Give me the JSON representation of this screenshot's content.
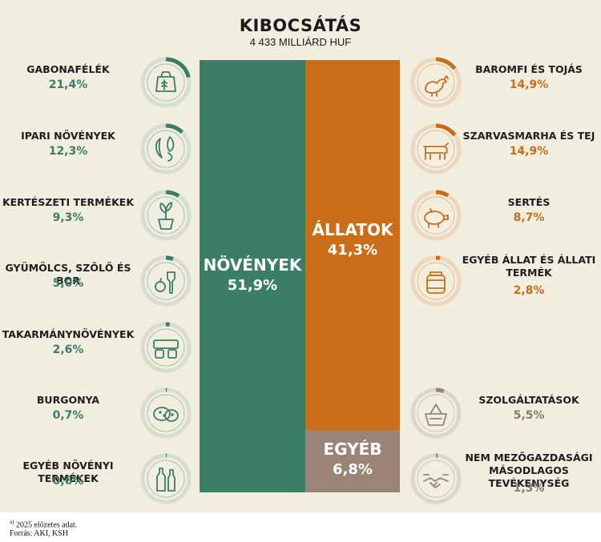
{
  "title": "KIBOCSÁTÁS",
  "subtitle": "4 433 MILLIÁRD HUF",
  "colors": {
    "plants": "#3b7d66",
    "animals": "#c96d1a",
    "other": "#9a8478",
    "background": "#f1eedf",
    "plants_text": "#3b7d66",
    "animals_text": "#c96d1a",
    "other_text": "#8a7a72"
  },
  "chart_data": {
    "type": "bar",
    "categories": [
      "NÖVÉNYEK",
      "ÁLLATOK",
      "EGYÉB"
    ],
    "values": [
      51.9,
      41.3,
      6.8
    ],
    "value_labels": [
      "51,9%",
      "41,3%",
      "6,8%"
    ],
    "unit": "%",
    "stacked": true,
    "title": "KIBOCSÁTÁS",
    "subtitle": "4 433 MILLIÁRD HUF"
  },
  "main": {
    "plants": {
      "label": "NÖVÉNYEK",
      "value": "51,9%"
    },
    "animals": {
      "label": "ÁLLATOK",
      "value": "41,3%"
    },
    "other": {
      "label": "EGYÉB",
      "value": "6,8%"
    }
  },
  "left_items": [
    {
      "name": "GABONAFÉLÉK",
      "value": "21,4%",
      "pct": 21.4,
      "icon": "grain-sack-icon"
    },
    {
      "name": "IPARI NÖVÉNYEK",
      "value": "12,3%",
      "pct": 12.3,
      "icon": "industrial-plants-icon"
    },
    {
      "name": "KERTÉSZETI TERMÉKEK",
      "value": "9,3%",
      "pct": 9.3,
      "icon": "potted-plant-icon"
    },
    {
      "name": "GYÜMÖLCS, SZŐLŐ ÉS BOR",
      "value": "5,0%",
      "pct": 5.0,
      "icon": "fruit-wine-icon"
    },
    {
      "name": "TAKARMÁNYNÖVÉNYEK",
      "value": "2,6%",
      "pct": 2.6,
      "icon": "hay-bales-icon"
    },
    {
      "name": "BURGONYA",
      "value": "0,7%",
      "pct": 0.7,
      "icon": "potato-icon"
    },
    {
      "name": "EGYÉB NÖVÉNYI TERMÉKEK",
      "value": "0,6%",
      "pct": 0.6,
      "icon": "bottles-icon"
    }
  ],
  "right_items": [
    {
      "name": "BAROMFI ÉS TOJÁS",
      "value": "14,9%",
      "pct": 14.9,
      "icon": "chicken-icon"
    },
    {
      "name": "SZARVASMARHA ÉS TEJ",
      "value": "14,9%",
      "pct": 14.9,
      "icon": "cow-icon"
    },
    {
      "name": "SERTÉS",
      "value": "8,7%",
      "pct": 8.7,
      "icon": "pig-icon"
    },
    {
      "name": "EGYÉB ÁLLAT ÉS ÁLLATI TERMÉK",
      "value": "2,8%",
      "pct": 2.8,
      "icon": "honey-jar-icon"
    },
    {
      "name": "SZOLGÁLTATÁSOK",
      "value": "5,5%",
      "pct": 5.5,
      "icon": "basket-icon"
    },
    {
      "name": "NEM MEZŐGAZDASÁGI MÁSODLAGOS TEVÉKENYSÉG",
      "value": "1,3%",
      "pct": 1.3,
      "icon": "handshake-icon"
    }
  ],
  "footnote": {
    "marker": "a)",
    "text": "2025 előzetes adat.",
    "source": "Forrás: AKI, KSH"
  }
}
